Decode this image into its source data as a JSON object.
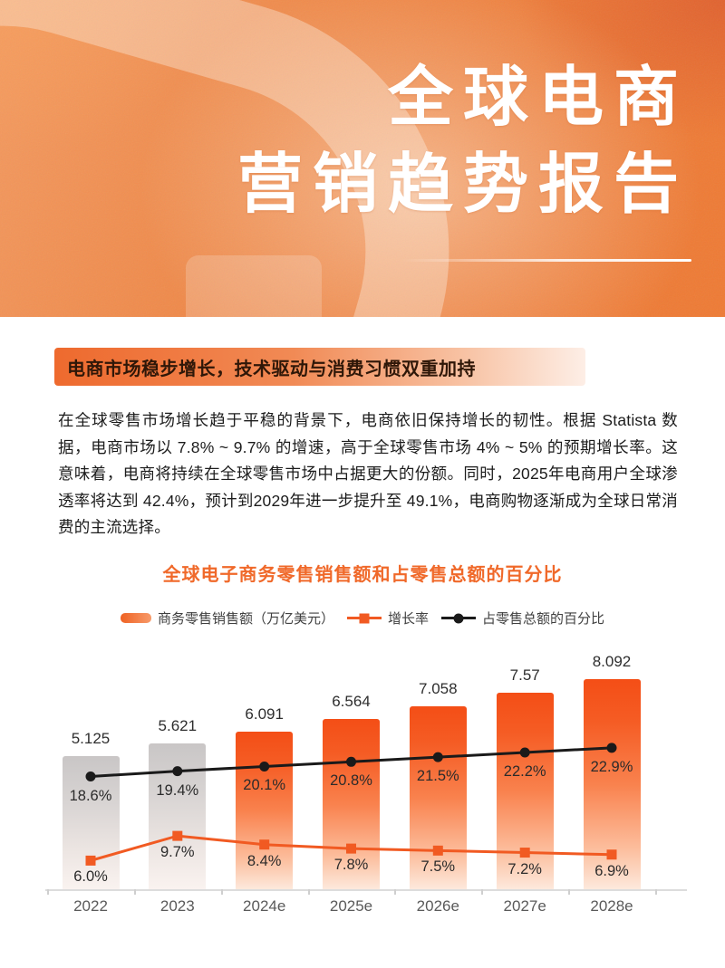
{
  "header": {
    "title_line1": "全球电商",
    "title_line2": "营销趋势报告"
  },
  "section": {
    "badge": "电商市场稳步增长，技术驱动与消费习惯双重加持",
    "paragraph": "在全球零售市场增长趋于平稳的背景下，电商依旧保持增长的韧性。根据 Statista 数据，电商市场以 7.8% ~ 9.7% 的增速，高于全球零售市场 4% ~ 5% 的预期增长率。这意味着，电商将持续在全球零售市场中占据更大的份额。同时，2025年电商用户全球渗透率将达到 42.4%，预计到2029年进一步提升至 49.1%，电商购物逐渐成为全球日常消费的主流选择。"
  },
  "chart_data": {
    "type": "bar",
    "title": "全球电子商务零售销售额和占零售总额的百分比",
    "categories": [
      "2022",
      "2023",
      "2024e",
      "2025e",
      "2026e",
      "2027e",
      "2028e"
    ],
    "series": [
      {
        "name": "商务零售销售额（万亿美元）",
        "type": "bar",
        "values": [
          5.125,
          5.621,
          6.091,
          6.564,
          7.058,
          7.57,
          8.092
        ],
        "labels": [
          "5.125",
          "5.621",
          "6.091",
          "6.564",
          "7.058",
          "7.57",
          "8.092"
        ]
      },
      {
        "name": "增长率",
        "type": "line",
        "values": [
          6.0,
          9.7,
          8.4,
          7.8,
          7.5,
          7.2,
          6.9
        ],
        "labels": [
          "6.0%",
          "9.7%",
          "8.4%",
          "7.8%",
          "7.5%",
          "7.2%",
          "6.9%"
        ]
      },
      {
        "name": "占零售总额的百分比",
        "type": "line",
        "values": [
          18.6,
          19.4,
          20.1,
          20.8,
          21.5,
          22.2,
          22.9
        ],
        "labels": [
          "18.6%",
          "19.4%",
          "20.1%",
          "20.8%",
          "21.5%",
          "22.2%",
          "22.9%"
        ]
      }
    ],
    "colors": {
      "bar_past": "#c9c6c6",
      "bar_forecast": "#f4511a",
      "growth_line": "#f15a22",
      "share_line": "#1a1a1a",
      "title_orange": "#f0692a",
      "header_orange": "#ee7c38"
    },
    "legend_position": "top",
    "grid": false
  }
}
